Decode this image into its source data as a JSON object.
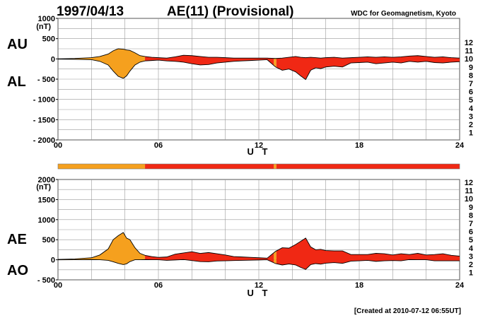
{
  "header": {
    "date": "1997/04/13",
    "title": "AE(11) (Provisional)",
    "source": "WDC for Geomagnetism, Kyoto"
  },
  "footer": {
    "created": "[Created at 2010-07-12 06:55UT]"
  },
  "legend_levels": [
    {
      "label": "12",
      "color": "#e6007e"
    },
    {
      "label": "11",
      "color": "#e60000"
    },
    {
      "label": "10",
      "color": "#f2a000"
    },
    {
      "label": "9",
      "color": "#e6d200"
    },
    {
      "label": "8",
      "color": "#c8e600"
    },
    {
      "label": "7",
      "color": "#33c8e6"
    },
    {
      "label": "6",
      "color": "#0050e6"
    },
    {
      "label": "5",
      "color": "#1a1aa0"
    },
    {
      "label": "4",
      "color": "#c800c8"
    },
    {
      "label": "3",
      "color": "#000000"
    },
    {
      "label": "2",
      "color": "#666666"
    },
    {
      "label": "1",
      "color": "#aaaaaa"
    }
  ],
  "colors": {
    "level10": "#f5a01e",
    "level11": "#f02814",
    "outline": "#000000",
    "grid": "#999999"
  },
  "chart_data": [
    {
      "type": "area",
      "panel": "AU/AL",
      "side_labels": [
        "AU",
        "AL"
      ],
      "ylabel": "(nT)",
      "xlabel": "U T",
      "xlim": [
        0,
        24
      ],
      "ylim": [
        -2000,
        1000
      ],
      "xticks": [
        "00",
        "06",
        "12",
        "18",
        "24"
      ],
      "yticks": [
        "1000",
        "500",
        "0",
        "- 500",
        "- 1000",
        "- 1500",
        "- 2000"
      ],
      "grid": true,
      "x": [
        0,
        1,
        2,
        2.5,
        3,
        3.3,
        3.6,
        3.9,
        4.1,
        4.3,
        4.6,
        4.9,
        5.2,
        5.6,
        6,
        6.5,
        7,
        7.5,
        8,
        8.5,
        9,
        9.5,
        10,
        10.5,
        11,
        11.5,
        12,
        12.5,
        13,
        13.4,
        13.8,
        14.2,
        14.5,
        14.8,
        15.1,
        15.4,
        15.7,
        16,
        16.5,
        17,
        17.5,
        18,
        18.5,
        19,
        19.5,
        20,
        20.5,
        21,
        21.5,
        22,
        22.5,
        23,
        23.5,
        24
      ],
      "series": [
        {
          "name": "AU",
          "values": [
            0,
            10,
            30,
            60,
            120,
            200,
            250,
            240,
            220,
            210,
            150,
            80,
            60,
            40,
            30,
            20,
            50,
            90,
            80,
            60,
            40,
            40,
            30,
            20,
            20,
            20,
            20,
            20,
            10,
            20,
            40,
            60,
            40,
            30,
            40,
            30,
            20,
            30,
            40,
            20,
            30,
            40,
            50,
            40,
            50,
            40,
            50,
            70,
            80,
            60,
            40,
            50,
            30,
            20
          ]
        },
        {
          "name": "AL",
          "values": [
            -5,
            -10,
            -20,
            -60,
            -150,
            -300,
            -430,
            -480,
            -420,
            -300,
            -150,
            -80,
            -50,
            -40,
            -30,
            -50,
            -60,
            -80,
            -120,
            -150,
            -140,
            -100,
            -80,
            -60,
            -50,
            -40,
            -30,
            -20,
            -200,
            -280,
            -250,
            -320,
            -420,
            -510,
            -280,
            -220,
            -240,
            -200,
            -180,
            -200,
            -100,
            -90,
            -80,
            -120,
            -100,
            -80,
            -100,
            -60,
            -80,
            -60,
            -90,
            -100,
            -80,
            -70
          ]
        }
      ],
      "level_bar": [
        {
          "from": 0,
          "to": 5.2,
          "level": "10"
        },
        {
          "from": 5.2,
          "to": 12.9,
          "level": "11"
        },
        {
          "from": 12.9,
          "to": 13.05,
          "level": "10"
        },
        {
          "from": 13.05,
          "to": 24,
          "level": "11"
        }
      ]
    },
    {
      "type": "area",
      "panel": "AE/AO",
      "side_labels": [
        "AE",
        "AO"
      ],
      "ylabel": "(nT)",
      "xlabel": "U T",
      "xlim": [
        0,
        24
      ],
      "ylim": [
        -500,
        2000
      ],
      "xticks": [
        "00",
        "06",
        "12",
        "18",
        "24"
      ],
      "yticks": [
        "2000",
        "1500",
        "1000",
        "500",
        "0",
        "- 500"
      ],
      "grid": true,
      "x": [
        0,
        1,
        2,
        2.5,
        3,
        3.3,
        3.6,
        3.9,
        4.1,
        4.3,
        4.6,
        4.9,
        5.2,
        5.6,
        6,
        6.5,
        7,
        7.5,
        8,
        8.5,
        9,
        9.5,
        10,
        10.5,
        11,
        11.5,
        12,
        12.5,
        13,
        13.4,
        13.8,
        14.2,
        14.5,
        14.8,
        15.1,
        15.4,
        15.7,
        16,
        16.5,
        17,
        17.5,
        18,
        18.5,
        19,
        19.5,
        20,
        20.5,
        21,
        21.5,
        22,
        22.5,
        23,
        23.5,
        24
      ],
      "series": [
        {
          "name": "AE",
          "values": [
            10,
            20,
            50,
            120,
            270,
            500,
            600,
            680,
            540,
            500,
            300,
            160,
            110,
            80,
            60,
            70,
            140,
            170,
            200,
            160,
            180,
            150,
            120,
            80,
            70,
            60,
            50,
            40,
            210,
            300,
            290,
            380,
            460,
            540,
            320,
            250,
            260,
            230,
            220,
            220,
            130,
            130,
            130,
            160,
            150,
            120,
            150,
            130,
            160,
            120,
            130,
            150,
            110,
            90
          ]
        },
        {
          "name": "AO",
          "values": [
            -2,
            0,
            5,
            0,
            -15,
            -50,
            -90,
            -120,
            -100,
            -45,
            0,
            0,
            5,
            0,
            0,
            -15,
            -5,
            5,
            -20,
            -45,
            -50,
            -30,
            -25,
            -20,
            -15,
            -10,
            -5,
            0,
            -95,
            -130,
            -105,
            -130,
            -190,
            -240,
            -120,
            -95,
            -110,
            -85,
            -70,
            -90,
            -35,
            -25,
            -15,
            -40,
            -25,
            -20,
            -25,
            5,
            0,
            0,
            -25,
            -25,
            -25,
            -25
          ]
        }
      ]
    }
  ]
}
